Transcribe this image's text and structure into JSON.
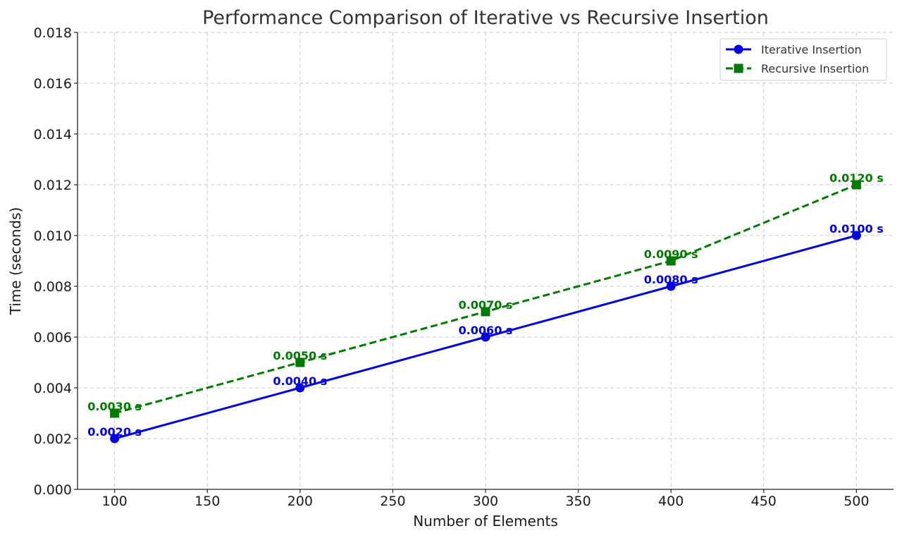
{
  "chart_data": {
    "type": "line",
    "title": "Performance Comparison of Iterative vs Recursive Insertion",
    "xlabel": "Number of Elements",
    "ylabel": "Time (seconds)",
    "x": [
      100,
      200,
      300,
      400,
      500
    ],
    "xlim": [
      80,
      520
    ],
    "ylim": [
      0,
      0.018
    ],
    "xticks": [
      100,
      150,
      200,
      250,
      300,
      350,
      400,
      450,
      500
    ],
    "xtick_labels": [
      "100",
      "150",
      "200",
      "250",
      "300",
      "350",
      "400",
      "450",
      "500"
    ],
    "yticks": [
      0,
      0.002,
      0.004,
      0.006,
      0.008,
      0.01,
      0.012,
      0.014,
      0.016,
      0.018
    ],
    "ytick_labels": [
      "0.000",
      "0.002",
      "0.004",
      "0.006",
      "0.008",
      "0.010",
      "0.012",
      "0.014",
      "0.016",
      "0.018"
    ],
    "grid": true,
    "legend_position": "top-right",
    "series": [
      {
        "name": "Iterative Insertion",
        "values": [
          0.002,
          0.004,
          0.006,
          0.008,
          0.01
        ],
        "labels": [
          "0.0020 s",
          "0.0040 s",
          "0.0060 s",
          "0.0080 s",
          "0.0100 s"
        ],
        "color": "#0000e0",
        "line_style": "solid",
        "marker": "circle"
      },
      {
        "name": "Recursive Insertion",
        "values": [
          0.003,
          0.005,
          0.007,
          0.009,
          0.012
        ],
        "labels": [
          "0.0030 s",
          "0.0050 s",
          "0.0070 s",
          "0.0090 s",
          "0.0120 s"
        ],
        "color": "#007a00",
        "line_style": "dashed",
        "marker": "square"
      }
    ]
  }
}
